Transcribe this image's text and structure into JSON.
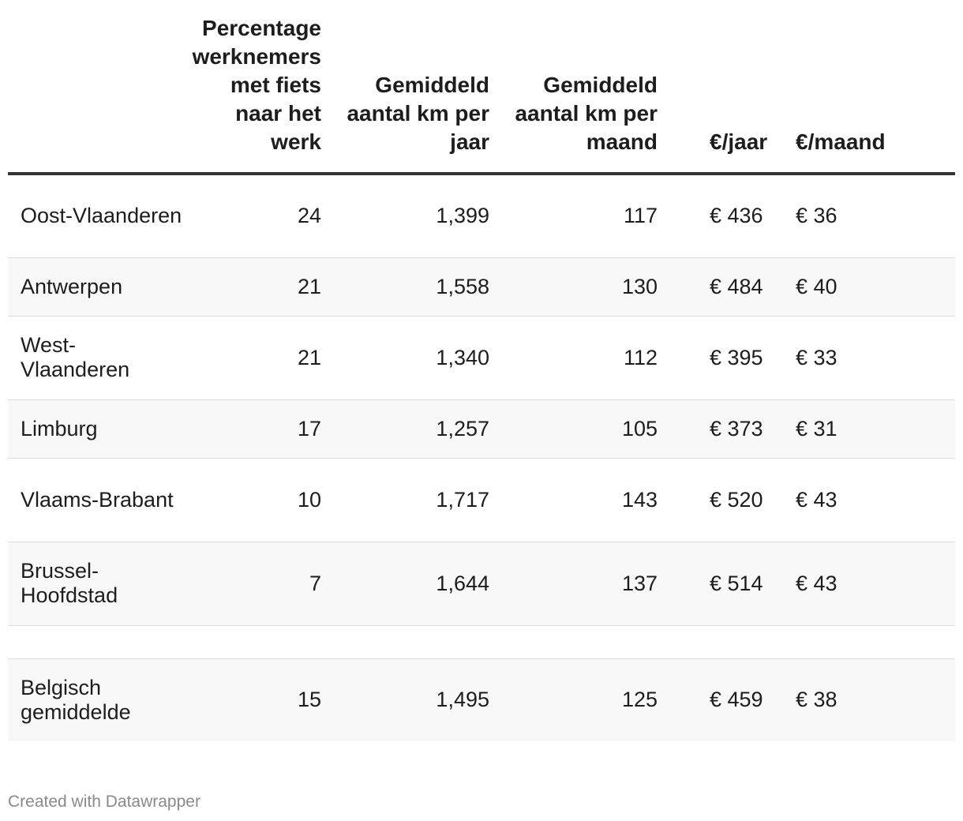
{
  "chart_data": {
    "type": "table",
    "columns": [
      "",
      "Percentage werknemers met fiets naar het werk",
      "Gemiddeld aantal km per jaar",
      "Gemiddeld aantal km per maand",
      "€/jaar",
      "€/maand"
    ],
    "rows": [
      [
        "Oost-Vlaanderen",
        "24",
        "1,399",
        "117",
        "€ 436",
        "€ 36"
      ],
      [
        "Antwerpen",
        "21",
        "1,558",
        "130",
        "€ 484",
        "€ 40"
      ],
      [
        "West-Vlaanderen",
        "21",
        "1,340",
        "112",
        "€ 395",
        "€ 33"
      ],
      [
        "Limburg",
        "17",
        "1,257",
        "105",
        "€ 373",
        "€ 31"
      ],
      [
        "Vlaams-Brabant",
        "10",
        "1,717",
        "143",
        "€ 520",
        "€ 43"
      ],
      [
        "Brussel-Hoofdstad",
        "7",
        "1,644",
        "137",
        "€ 514",
        "€ 43"
      ]
    ],
    "summary_row": [
      "Belgisch gemiddelde",
      "15",
      "1,495",
      "125",
      "€ 459",
      "€ 38"
    ]
  },
  "footer": {
    "credit": "Created with Datawrapper"
  }
}
